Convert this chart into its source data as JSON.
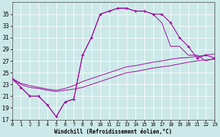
{
  "xlabel": "Windchill (Refroidissement éolien,°C)",
  "background_color": "#cce8e8",
  "grid_color": "#ffffff",
  "line_color": "#990099",
  "hours": [
    0,
    1,
    2,
    3,
    4,
    5,
    6,
    7,
    8,
    9,
    10,
    11,
    12,
    13,
    14,
    15,
    16,
    17,
    18,
    19,
    20,
    21,
    22,
    23
  ],
  "windchill": [
    24,
    22.5,
    21.0,
    21.0,
    19.5,
    17.5,
    20.0,
    20.5,
    28.0,
    31.0,
    35.0,
    35.5,
    36.0,
    36.0,
    35.5,
    35.5,
    35.0,
    35.0,
    33.5,
    31.0,
    29.5,
    27.5,
    28.0,
    27.5
  ],
  "line2": [
    24,
    22.5,
    21.0,
    21.0,
    19.5,
    17.5,
    20.0,
    20.5,
    28.0,
    31.0,
    35.0,
    35.5,
    36.0,
    36.0,
    35.5,
    35.5,
    35.0,
    33.5,
    29.5,
    29.5,
    28.0,
    28.0,
    27.0,
    27.5
  ],
  "min_line": [
    24.0,
    23.0,
    22.5,
    22.3,
    22.0,
    21.8,
    22.0,
    22.2,
    22.5,
    23.0,
    23.5,
    24.0,
    24.5,
    25.0,
    25.2,
    25.5,
    25.8,
    26.0,
    26.2,
    26.5,
    26.8,
    27.0,
    27.2,
    27.3
  ],
  "max_line": [
    24.0,
    23.2,
    22.8,
    22.5,
    22.2,
    22.0,
    22.3,
    22.8,
    23.5,
    24.0,
    24.5,
    25.0,
    25.5,
    26.0,
    26.2,
    26.5,
    26.8,
    27.0,
    27.3,
    27.5,
    27.6,
    27.8,
    28.0,
    28.2
  ],
  "ylim": [
    17,
    37
  ],
  "yticks": [
    17,
    19,
    21,
    23,
    25,
    27,
    29,
    31,
    33,
    35
  ],
  "xlim": [
    0,
    23
  ],
  "xticks": [
    0,
    1,
    2,
    3,
    4,
    5,
    6,
    7,
    8,
    9,
    10,
    11,
    12,
    13,
    14,
    15,
    16,
    17,
    18,
    19,
    20,
    21,
    22,
    23
  ]
}
